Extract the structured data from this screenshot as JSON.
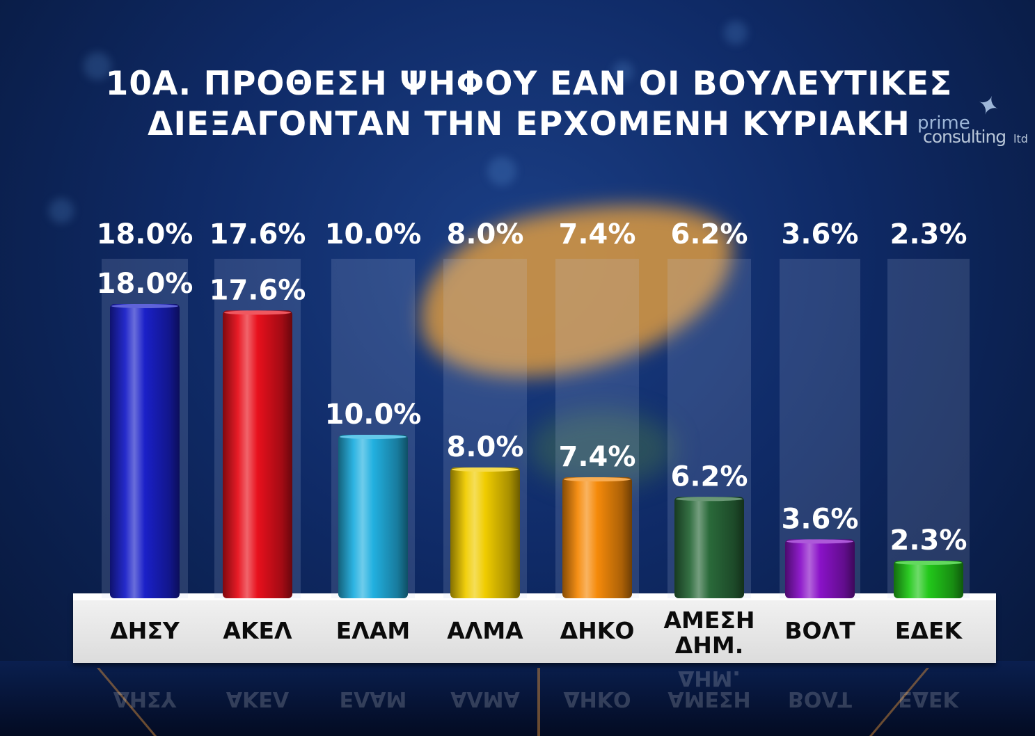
{
  "title_lines": [
    "10Α. ΠΡΟΘΕΣΗ ΨΗΦΟΥ ΕΑΝ ΟΙ ΒΟΥΛΕΥΤΙΚΕΣ",
    "ΔΙΕΞΑΓΟΝΤΑΝ ΤΗΝ ΕΡΧΟΜΕΝΗ ΚΥΡΙΑΚΗ"
  ],
  "logo": {
    "line1": "prime",
    "line2": "consulting",
    "line3": "ltd"
  },
  "chart_data": {
    "type": "bar",
    "categories": [
      "ΔΗΣΥ",
      "ΑΚΕΛ",
      "ΕΛΑΜ",
      "ΑΛΜΑ",
      "ΔΗΚΟ",
      "ΑΜΕΣΗ ΔΗΜ.",
      "ΒΟΛΤ",
      "ΕΔΕΚ"
    ],
    "values": [
      18.0,
      17.6,
      10.0,
      8.0,
      7.4,
      6.2,
      3.6,
      2.3
    ],
    "value_labels": [
      "18.0%",
      "17.6%",
      "10.0%",
      "8.0%",
      "7.4%",
      "6.2%",
      "3.6%",
      "2.3%"
    ],
    "label_lines": [
      [
        "ΔΗΣΥ"
      ],
      [
        "ΑΚΕΛ"
      ],
      [
        "ΕΛΑΜ"
      ],
      [
        "ΑΛΜΑ"
      ],
      [
        "ΔΗΚΟ"
      ],
      [
        "ΑΜΕΣΗ",
        "ΔΗΜ."
      ],
      [
        "ΒΟΛΤ"
      ],
      [
        "ΕΔΕΚ"
      ]
    ],
    "colors": [
      "#1a20c8",
      "#e8101c",
      "#22b0e0",
      "#f0cc00",
      "#f58a0a",
      "#2a6a3a",
      "#8a12c8",
      "#22c81a"
    ],
    "ylim": [
      0,
      18.0
    ],
    "legend": "none",
    "grid": false
  }
}
